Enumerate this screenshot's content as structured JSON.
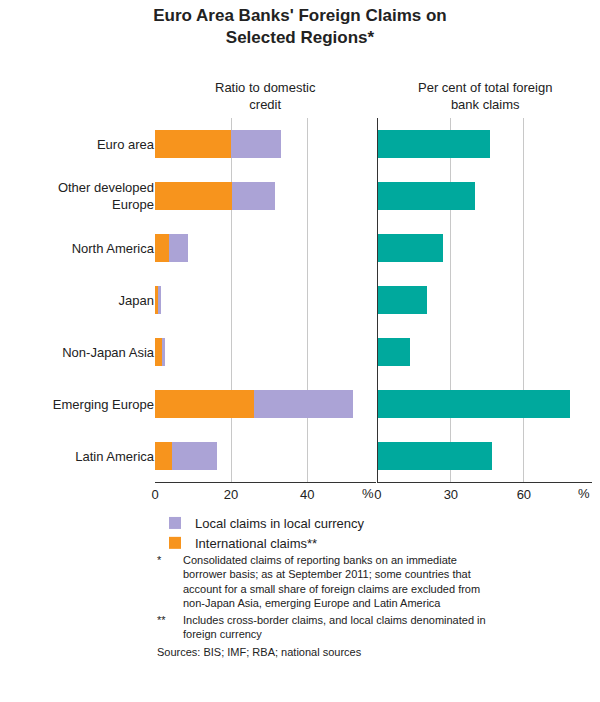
{
  "chart_data": [
    {
      "type": "bar",
      "orientation": "horizontal",
      "stacked": true,
      "title": [
        "Euro Area Banks' Foreign Claims on",
        "Selected Regions*"
      ],
      "subtitle": "Ratio to domestic credit",
      "categories": [
        "Euro area",
        "Other developed Europe",
        "North America",
        "Japan",
        "Non-Japan Asia",
        "Emerging Europe",
        "Latin America"
      ],
      "series": [
        {
          "name": "International claims**",
          "color": "#f7941d",
          "values": [
            20,
            20.3,
            3.7,
            0.8,
            1.9,
            26.1,
            4.5
          ]
        },
        {
          "name": "Local claims in local currency",
          "color": "#aba3d6",
          "values": [
            13,
            11.2,
            5.1,
            0.8,
            0.8,
            25.9,
            11.8
          ]
        }
      ],
      "xlim": [
        0,
        58
      ],
      "xticks": [
        0,
        20,
        40
      ],
      "xlabel": "%",
      "grid": true,
      "legend": "bottom left"
    },
    {
      "type": "bar",
      "orientation": "horizontal",
      "subtitle": "Per cent of total foreign bank claims",
      "categories": [
        "Euro area",
        "Other developed Europe",
        "North America",
        "Japan",
        "Non-Japan Asia",
        "Emerging Europe",
        "Latin America"
      ],
      "values": [
        46.2,
        40,
        26.7,
        20.2,
        13.4,
        79,
        47
      ],
      "color": "#00a99d",
      "xlim": [
        0,
        88
      ],
      "xticks": [
        0,
        30,
        60
      ],
      "xlabel": "%",
      "grid": true,
      "tick_labels": "x"
    }
  ],
  "notes": [
    {
      "marker": "*",
      "text": "Consolidated claims of reporting banks on an immediate borrower basis; as at September 2011; some countries that account for a small share of foreign claims are excluded from non-Japan Asia, emerging Europe and Latin America"
    },
    {
      "marker": "**",
      "text": "Includes cross-border claims, and local claims denominated in foreign currency"
    }
  ],
  "source": "Sources: BIS; IMF; RBA; national sources"
}
